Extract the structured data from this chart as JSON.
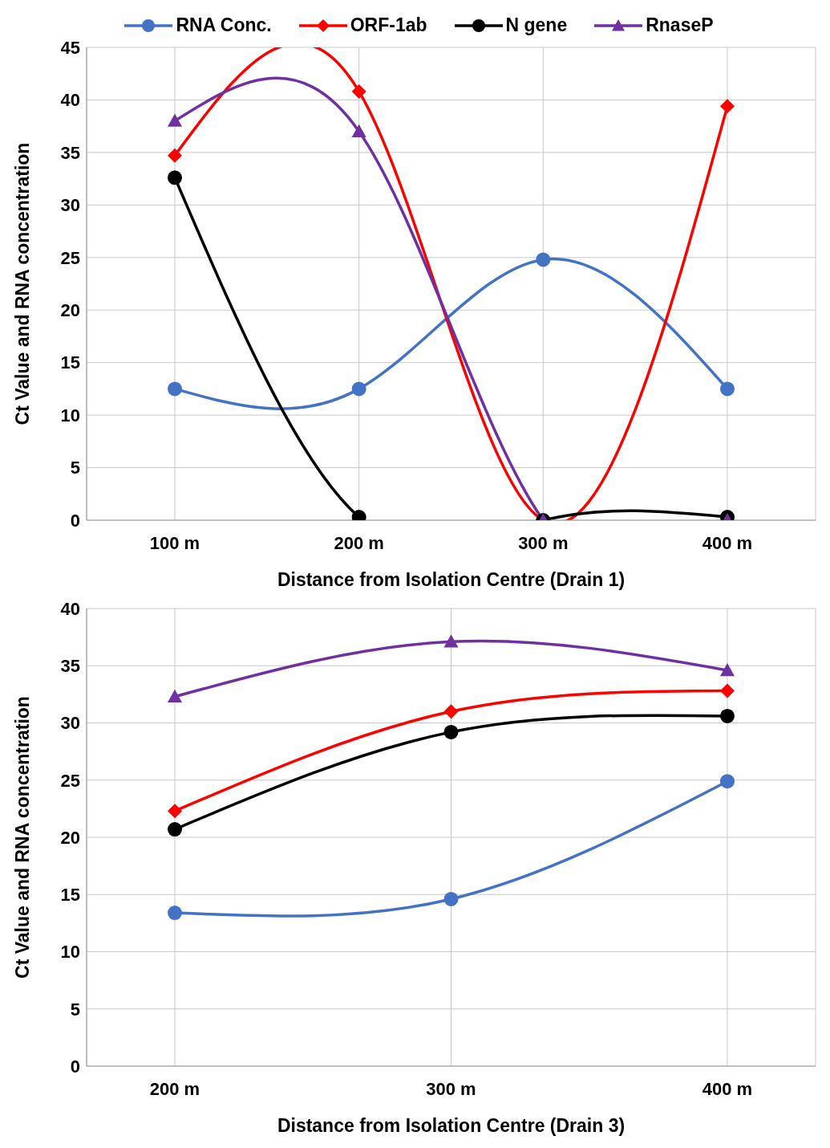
{
  "chart_data": [
    {
      "type": "line",
      "categories": [
        "100 m",
        "200 m",
        "300 m",
        "400 m"
      ],
      "xlabel": "Distance from Isolation Centre (Drain 1)",
      "ylabel": "Ct Value and RNA concentration",
      "ylim": [
        0,
        45
      ],
      "yticks": [
        0,
        5,
        10,
        15,
        20,
        25,
        30,
        35,
        40,
        45
      ],
      "grid": true,
      "legend": "top",
      "line_style": "solid",
      "series": [
        {
          "name": "RNA Conc.",
          "color": "#4472c4",
          "marker": "circle",
          "values": [
            12.5,
            12.5,
            24.8,
            12.5
          ]
        },
        {
          "name": "ORF-1ab",
          "color": "#ff0000",
          "marker": "diamond",
          "values": [
            34.7,
            40.8,
            0,
            39.4
          ]
        },
        {
          "name": "N gene",
          "color": "#000000",
          "marker": "circle",
          "values": [
            32.6,
            0.3,
            0,
            0.3
          ]
        },
        {
          "name": "RnaseP",
          "color": "#7030a0",
          "marker": "triangle",
          "values": [
            38,
            37,
            0,
            0
          ]
        }
      ]
    },
    {
      "type": "line",
      "categories": [
        "200 m",
        "300 m",
        "400 m"
      ],
      "xlabel": "Distance from Isolation Centre (Drain 3)",
      "ylabel": "Ct Value and RNA concentration",
      "ylim": [
        0,
        40
      ],
      "yticks": [
        0,
        5,
        10,
        15,
        20,
        25,
        30,
        35,
        40
      ],
      "grid": true,
      "line_style": "solid",
      "series": [
        {
          "color": "#4472c4",
          "marker": "circle",
          "values": [
            13.4,
            14.6,
            24.9
          ]
        },
        {
          "color": "#ff0000",
          "marker": "diamond",
          "values": [
            22.3,
            31,
            32.8
          ]
        },
        {
          "color": "#000000",
          "marker": "circle",
          "values": [
            20.7,
            29.2,
            30.6
          ]
        },
        {
          "color": "#7030a0",
          "marker": "triangle",
          "values": [
            32.3,
            37.1,
            34.6
          ]
        }
      ]
    }
  ]
}
